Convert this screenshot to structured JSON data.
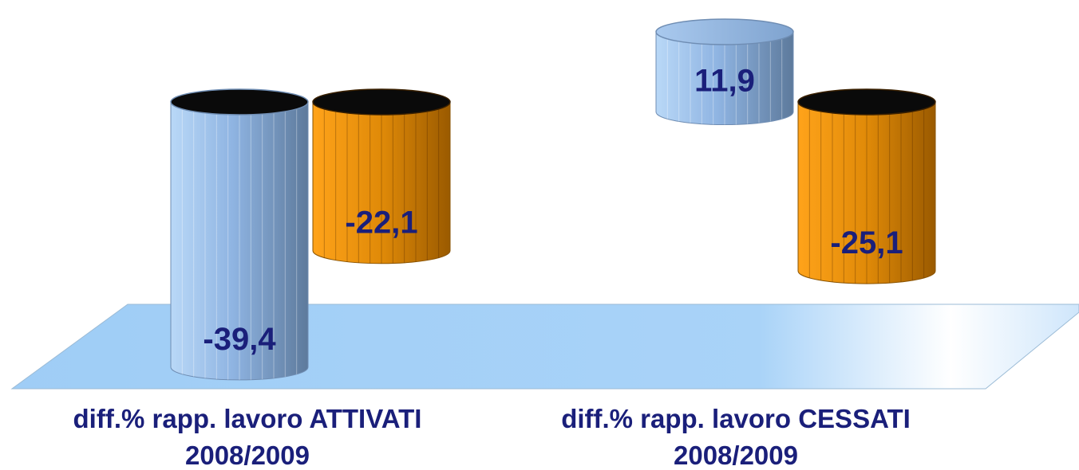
{
  "chart_data": {
    "type": "bar",
    "categories": [
      {
        "line1": "diff.% rapp. lavoro ATTIVATI",
        "line2": "2008/2009"
      },
      {
        "line1": "diff.% rapp. lavoro CESSATI",
        "line2": "2008/2009"
      }
    ],
    "series": [
      {
        "color": "#8fb6e6",
        "labels": [
          "-39,4",
          "11,9"
        ],
        "values": [
          -39.4,
          11.9
        ]
      },
      {
        "color": "#f0900a",
        "labels": [
          "-22,1",
          "-25,1"
        ],
        "values": [
          -22.1,
          -25.1
        ]
      }
    ],
    "colors": {
      "floor": "#9ecbf5",
      "label_text": "#1a1f7a",
      "top_dark": "#0a0a0a"
    }
  }
}
